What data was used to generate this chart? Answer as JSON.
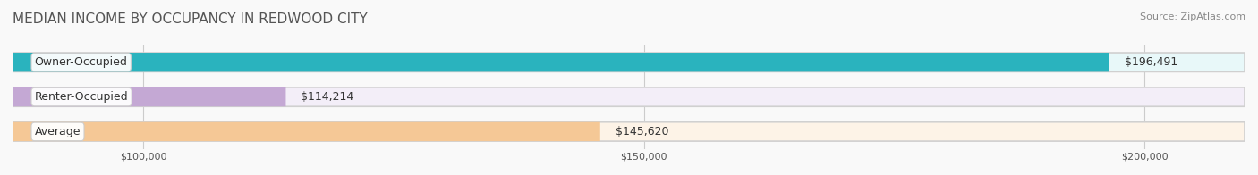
{
  "title": "MEDIAN INCOME BY OCCUPANCY IN REDWOOD CITY",
  "source": "Source: ZipAtlas.com",
  "categories": [
    "Owner-Occupied",
    "Renter-Occupied",
    "Average"
  ],
  "values": [
    196491,
    114214,
    145620
  ],
  "labels": [
    "$196,491",
    "$114,214",
    "$145,620"
  ],
  "bar_colors": [
    "#2ab3be",
    "#c4a8d4",
    "#f5c896"
  ],
  "bar_bg_colors": [
    "#e8f8f9",
    "#f3eef8",
    "#fdf3e7"
  ],
  "xlim": [
    87000,
    210000
  ],
  "xticks": [
    100000,
    150000,
    200000
  ],
  "xticklabels": [
    "$100,000",
    "$150,000",
    "$200,000"
  ],
  "bar_height": 0.55,
  "figsize": [
    14.06,
    1.96
  ],
  "dpi": 100,
  "title_fontsize": 11,
  "source_fontsize": 8,
  "label_fontsize": 9,
  "category_fontsize": 9,
  "tick_fontsize": 8
}
